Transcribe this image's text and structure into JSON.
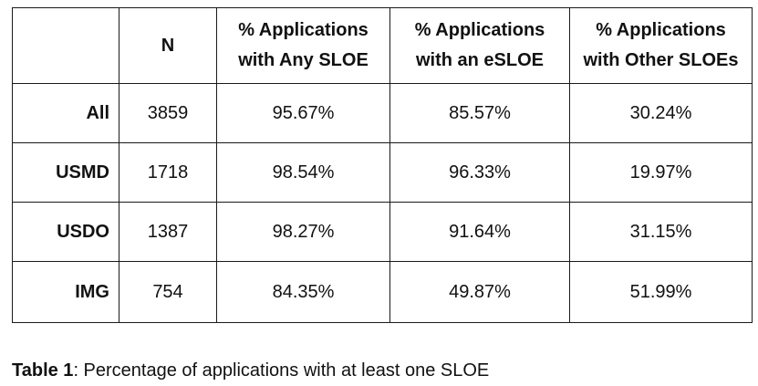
{
  "table": {
    "headers": [
      "",
      "N",
      "% Applications with Any SLOE",
      "% Applications with an eSLOE",
      "% Applications with Other SLOEs"
    ],
    "header_lines": [
      [
        ""
      ],
      [
        "N"
      ],
      [
        "% Applications",
        "with Any SLOE"
      ],
      [
        "% Applications",
        "with an eSLOE"
      ],
      [
        "% Applications",
        "with Other SLOEs"
      ]
    ],
    "rows": [
      {
        "label": "All",
        "n": "3859",
        "any_sloe": "95.67%",
        "esloe": "85.57%",
        "other_sloes": "30.24%"
      },
      {
        "label": "USMD",
        "n": "1718",
        "any_sloe": "98.54%",
        "esloe": "96.33%",
        "other_sloes": "19.97%"
      },
      {
        "label": "USDO",
        "n": "1387",
        "any_sloe": "98.27%",
        "esloe": "91.64%",
        "other_sloes": "31.15%"
      },
      {
        "label": "IMG",
        "n": "754",
        "any_sloe": "84.35%",
        "esloe": "49.87%",
        "other_sloes": "51.99%"
      }
    ]
  },
  "caption": {
    "label": "Table 1",
    "text": ": Percentage of applications with at least one SLOE"
  }
}
